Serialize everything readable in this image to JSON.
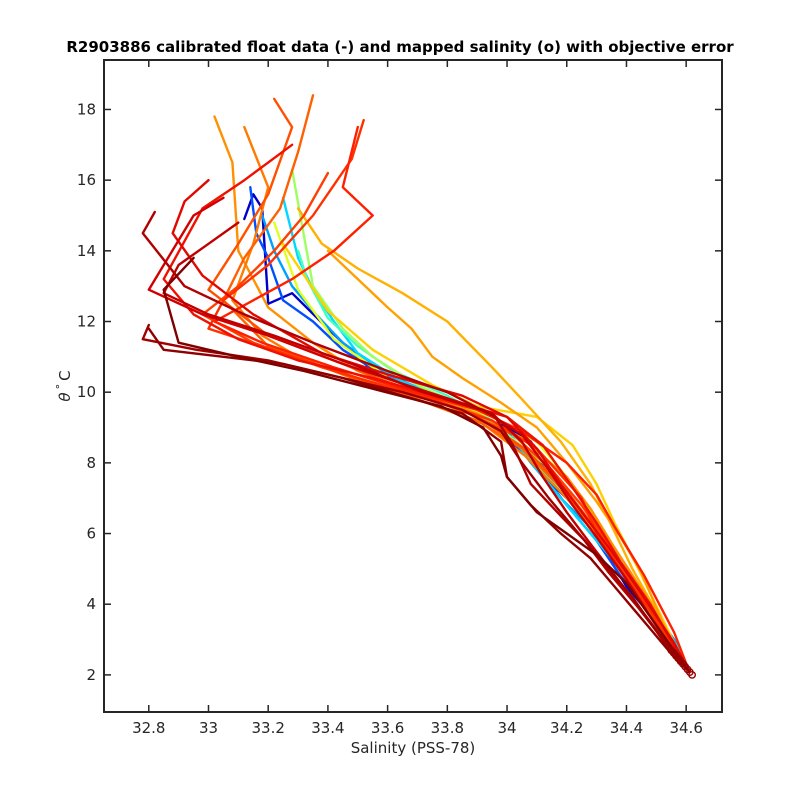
{
  "chart_data": {
    "type": "line",
    "title": "R2903886 calibrated float data (-) and mapped salinity (o) with objective error",
    "xlabel": "Salinity (PSS-78)",
    "ylabel_symbol": "θ",
    "ylabel_degree": "°",
    "ylabel_unit": "C",
    "xlim": [
      32.65,
      34.72
    ],
    "ylim": [
      0.95,
      19.4
    ],
    "xticks": [
      32.8,
      33,
      33.2,
      33.4,
      33.6,
      33.8,
      34,
      34.2,
      34.4,
      34.6
    ],
    "xtick_labels": [
      "32.8",
      "33",
      "33.2",
      "33.4",
      "33.6",
      "33.8",
      "34",
      "34.2",
      "34.4",
      "34.6"
    ],
    "yticks": [
      2,
      4,
      6,
      8,
      10,
      12,
      14,
      16,
      18
    ],
    "ytick_labels": [
      "2",
      "4",
      "6",
      "8",
      "10",
      "12",
      "14",
      "16",
      "18"
    ],
    "grid": false,
    "legend": "none",
    "colormap": "jet (profile index, blue = early, dark red = late)",
    "profile_count": 60,
    "deep_cluster": {
      "x": [
        34.55,
        34.62
      ],
      "y": [
        2.0,
        2.7
      ],
      "color": "#990000"
    },
    "series": [
      {
        "color": "#0000c8",
        "x": [
          33.12,
          33.15,
          33.18,
          33.2,
          33.28,
          33.4,
          33.55,
          33.8,
          34.0,
          34.08,
          34.15,
          34.25,
          34.32,
          34.4,
          34.5,
          34.58,
          34.61
        ],
        "y": [
          14.9,
          15.6,
          15.2,
          12.5,
          12.8,
          11.8,
          10.6,
          9.7,
          9.0,
          8.6,
          7.4,
          6.6,
          5.6,
          4.5,
          3.5,
          2.6,
          2.1
        ]
      },
      {
        "color": "#0050ff",
        "x": [
          33.14,
          33.16,
          33.2,
          33.25,
          33.35,
          33.45,
          33.6,
          33.85,
          33.98,
          34.1,
          34.2,
          34.3,
          34.38,
          34.48,
          34.57,
          34.61
        ],
        "y": [
          15.8,
          14.5,
          13.8,
          12.6,
          12.0,
          11.2,
          10.4,
          9.6,
          8.9,
          7.9,
          6.8,
          5.8,
          4.8,
          3.8,
          2.8,
          2.1
        ]
      },
      {
        "color": "#00a0ff",
        "x": [
          33.18,
          33.22,
          33.28,
          33.36,
          33.45,
          33.6,
          33.82,
          34.0,
          34.08,
          34.18,
          34.3,
          34.38,
          34.47,
          34.56,
          34.61
        ],
        "y": [
          15.0,
          14.0,
          13.0,
          12.2,
          11.4,
          10.5,
          9.7,
          8.9,
          8.0,
          7.0,
          6.0,
          5.0,
          4.0,
          3.0,
          2.1
        ]
      },
      {
        "color": "#00d8ff",
        "x": [
          33.25,
          33.3,
          33.35,
          33.42,
          33.5,
          33.65,
          33.85,
          34.02,
          34.12,
          34.22,
          34.3,
          34.4,
          34.5,
          34.58,
          34.61
        ],
        "y": [
          15.5,
          13.8,
          12.9,
          12.0,
          11.1,
          10.3,
          9.6,
          8.7,
          7.6,
          6.6,
          5.8,
          4.8,
          3.6,
          2.7,
          2.1
        ]
      },
      {
        "color": "#40ffc0",
        "x": [
          33.3,
          33.33,
          33.4,
          33.5,
          33.62,
          33.8,
          33.95,
          34.05,
          34.15,
          34.25,
          34.35,
          34.45,
          34.55,
          34.61
        ],
        "y": [
          14.0,
          13.2,
          12.1,
          11.3,
          10.6,
          9.9,
          9.2,
          8.4,
          7.5,
          6.5,
          5.4,
          4.2,
          3.0,
          2.1
        ]
      },
      {
        "color": "#a0ff60",
        "x": [
          33.28,
          33.35,
          33.45,
          33.55,
          33.7,
          33.88,
          34.0,
          34.12,
          34.2,
          34.28,
          34.36,
          34.45,
          34.55,
          34.61
        ],
        "y": [
          16.3,
          13.0,
          11.8,
          11.0,
          10.2,
          9.5,
          8.8,
          8.0,
          7.2,
          6.2,
          5.2,
          4.1,
          3.0,
          2.1
        ]
      },
      {
        "color": "#e0ff20",
        "x": [
          33.22,
          33.3,
          33.42,
          33.6,
          33.78,
          33.95,
          34.1,
          34.2,
          34.28,
          34.34,
          34.42,
          34.52,
          34.6
        ],
        "y": [
          14.8,
          12.9,
          11.5,
          10.4,
          9.8,
          9.3,
          8.6,
          7.6,
          6.6,
          5.6,
          4.5,
          3.2,
          2.2
        ]
      },
      {
        "color": "#ffd000",
        "x": [
          33.25,
          33.4,
          33.55,
          33.75,
          33.9,
          34.1,
          34.22,
          34.3,
          34.36,
          34.44,
          34.52,
          34.6
        ],
        "y": [
          14.2,
          12.3,
          11.2,
          10.2,
          9.6,
          9.3,
          8.5,
          7.4,
          6.3,
          5.0,
          3.6,
          2.2
        ]
      },
      {
        "color": "#ffb000",
        "x": [
          33.3,
          33.38,
          33.5,
          33.65,
          33.8,
          33.95,
          34.05,
          34.18,
          34.28,
          34.34,
          34.42,
          34.5,
          34.6
        ],
        "y": [
          15.2,
          14.2,
          13.5,
          12.8,
          12.0,
          10.7,
          9.8,
          8.6,
          7.4,
          6.4,
          5.0,
          3.8,
          2.2
        ]
      },
      {
        "color": "#ffa000",
        "x": [
          33.4,
          33.5,
          33.6,
          33.68,
          33.75,
          33.85,
          33.98,
          34.1,
          34.2,
          34.3,
          34.38,
          34.45,
          34.52,
          34.61
        ],
        "y": [
          14.0,
          13.2,
          12.4,
          11.8,
          11.0,
          10.4,
          9.7,
          9.0,
          8.0,
          6.9,
          5.9,
          4.9,
          3.5,
          2.1
        ]
      },
      {
        "color": "#ff9000",
        "x": [
          33.02,
          33.08,
          33.1,
          33.2,
          33.35,
          33.5,
          33.7,
          33.9,
          34.05,
          34.2,
          34.28,
          34.36,
          34.46,
          34.55,
          34.61
        ],
        "y": [
          17.8,
          16.5,
          14.0,
          12.4,
          11.4,
          10.6,
          10.0,
          9.4,
          8.7,
          7.6,
          6.7,
          5.6,
          4.3,
          3.0,
          2.1
        ]
      },
      {
        "color": "#ff7a00",
        "x": [
          33.12,
          33.2,
          33.15,
          33.08,
          33.18,
          33.3,
          33.48,
          33.7,
          33.92,
          34.06,
          34.2,
          34.3,
          34.4,
          34.52,
          34.6
        ],
        "y": [
          17.5,
          15.8,
          14.2,
          12.6,
          11.6,
          11.0,
          10.4,
          9.8,
          9.1,
          8.2,
          7.0,
          6.0,
          4.8,
          3.3,
          2.2
        ]
      },
      {
        "color": "#ff6000",
        "x": [
          33.35,
          33.3,
          33.24,
          33.12,
          33.05,
          33.2,
          33.45,
          33.7,
          33.9,
          34.05,
          34.18,
          34.28,
          34.36,
          34.46,
          34.56,
          34.61
        ],
        "y": [
          18.4,
          16.8,
          15.2,
          13.8,
          12.6,
          11.3,
          10.5,
          9.8,
          9.2,
          8.4,
          7.3,
          6.3,
          5.3,
          4.1,
          2.8,
          2.1
        ]
      },
      {
        "color": "#ff5000",
        "x": [
          33.22,
          33.28,
          33.2,
          33.1,
          33.0,
          33.2,
          33.45,
          33.68,
          33.9,
          34.06,
          34.2,
          34.3,
          34.4,
          34.5,
          34.6
        ],
        "y": [
          18.3,
          17.5,
          15.6,
          14.2,
          12.9,
          11.6,
          10.8,
          10.0,
          9.3,
          8.4,
          7.2,
          6.1,
          4.9,
          3.7,
          2.2
        ]
      },
      {
        "color": "#ff4000",
        "x": [
          33.4,
          33.32,
          33.22,
          33.1,
          32.98,
          33.15,
          33.38,
          33.62,
          33.85,
          34.02,
          34.15,
          34.25,
          34.34,
          34.44,
          34.55,
          34.61
        ],
        "y": [
          16.2,
          15.0,
          14.0,
          13.0,
          12.2,
          11.4,
          10.7,
          10.1,
          9.5,
          8.8,
          7.8,
          6.8,
          5.7,
          4.4,
          3.0,
          2.1
        ]
      },
      {
        "color": "#ff3000",
        "x": [
          33.52,
          33.48,
          33.35,
          33.2,
          33.05,
          33.0,
          33.25,
          33.5,
          33.75,
          33.95,
          34.1,
          34.25,
          34.3,
          34.38,
          34.48,
          34.58
        ],
        "y": [
          17.7,
          16.6,
          15.0,
          13.6,
          12.6,
          11.8,
          11.1,
          10.4,
          9.8,
          9.2,
          8.4,
          7.0,
          6.0,
          5.0,
          3.8,
          2.4
        ]
      },
      {
        "color": "#ff2000",
        "x": [
          33.5,
          33.45,
          33.55,
          33.42,
          33.28,
          33.15,
          33.02,
          33.18,
          33.42,
          33.65,
          33.9,
          34.05,
          34.2,
          34.3,
          34.36,
          34.46,
          34.56,
          34.61
        ],
        "y": [
          17.5,
          15.8,
          15.0,
          14.0,
          13.2,
          12.6,
          12.0,
          11.4,
          10.7,
          10.1,
          9.5,
          8.9,
          8.0,
          7.1,
          6.2,
          4.8,
          3.2,
          2.1
        ]
      },
      {
        "color": "#f01000",
        "x": [
          33.28,
          33.12,
          32.98,
          32.85,
          32.95,
          33.1,
          33.3,
          33.55,
          33.8,
          34.0,
          34.12,
          34.22,
          34.3,
          34.38,
          34.48,
          34.58
        ],
        "y": [
          17.0,
          16.0,
          15.2,
          13.2,
          12.2,
          11.5,
          10.9,
          10.4,
          9.8,
          9.3,
          8.5,
          7.3,
          6.3,
          5.2,
          4.0,
          2.5
        ]
      },
      {
        "color": "#e00800",
        "x": [
          33.0,
          32.92,
          32.88,
          32.98,
          33.15,
          33.38,
          33.6,
          33.85,
          34.0,
          34.1,
          34.18,
          34.26,
          34.35,
          34.45,
          34.56,
          34.61
        ],
        "y": [
          16.0,
          15.4,
          14.5,
          13.3,
          12.2,
          11.1,
          10.5,
          9.9,
          9.3,
          8.4,
          7.4,
          6.5,
          5.5,
          4.3,
          2.9,
          2.1
        ]
      },
      {
        "color": "#d00000",
        "x": [
          33.05,
          32.95,
          32.8,
          32.98,
          33.2,
          33.45,
          33.7,
          33.92,
          34.05,
          34.14,
          34.22,
          34.3,
          34.4,
          34.5,
          34.6
        ],
        "y": [
          15.5,
          15.0,
          12.9,
          12.2,
          11.6,
          10.8,
          10.1,
          9.5,
          8.8,
          7.8,
          6.8,
          5.9,
          4.7,
          3.4,
          2.2
        ]
      },
      {
        "color": "#c00000",
        "x": [
          33.1,
          33.0,
          32.9,
          32.85,
          33.0,
          33.22,
          33.48,
          33.72,
          33.95,
          34.05,
          34.12,
          34.2,
          34.28,
          34.38,
          34.48,
          34.58
        ],
        "y": [
          14.8,
          14.2,
          13.6,
          12.8,
          12.2,
          11.6,
          10.8,
          10.0,
          9.4,
          8.6,
          7.6,
          6.6,
          5.7,
          4.6,
          3.5,
          2.4
        ]
      },
      {
        "color": "#b00000",
        "x": [
          32.82,
          32.78,
          32.92,
          33.12,
          33.35,
          33.6,
          33.8,
          33.96,
          34.02,
          34.08,
          34.18,
          34.26,
          34.34,
          34.44,
          34.54,
          34.61
        ],
        "y": [
          15.1,
          14.5,
          13.0,
          12.2,
          11.4,
          10.6,
          10.0,
          9.3,
          8.5,
          7.4,
          6.5,
          5.8,
          4.9,
          3.9,
          2.8,
          2.1
        ]
      },
      {
        "color": "#a00000",
        "x": [
          32.8,
          32.78,
          32.96,
          33.2,
          33.4,
          33.65,
          33.85,
          33.98,
          34.05,
          34.14,
          34.24,
          34.32,
          34.42,
          34.52,
          34.6
        ],
        "y": [
          11.9,
          11.5,
          11.2,
          10.9,
          10.5,
          10.0,
          9.5,
          8.9,
          8.0,
          7.0,
          6.0,
          5.2,
          4.2,
          3.0,
          2.2
        ]
      },
      {
        "color": "#900000",
        "x": [
          32.8,
          32.85,
          33.05,
          33.25,
          33.45,
          33.65,
          33.85,
          33.98,
          34.0,
          34.08,
          34.18,
          34.28,
          34.36,
          34.46,
          34.56,
          34.61
        ],
        "y": [
          11.8,
          11.2,
          11.0,
          10.8,
          10.4,
          9.9,
          9.4,
          8.6,
          7.6,
          6.8,
          6.0,
          5.3,
          4.5,
          3.5,
          2.5,
          2.1
        ]
      },
      {
        "color": "#800000",
        "x": [
          32.95,
          32.85,
          32.9,
          33.1,
          33.32,
          33.55,
          33.78,
          33.92,
          33.98,
          34.0,
          34.1,
          34.2,
          34.3,
          34.4,
          34.5,
          34.6
        ],
        "y": [
          13.8,
          12.9,
          11.4,
          11.0,
          10.6,
          10.1,
          9.6,
          9.0,
          8.2,
          7.6,
          6.6,
          6.0,
          5.4,
          4.6,
          3.4,
          2.2
        ]
      }
    ]
  }
}
